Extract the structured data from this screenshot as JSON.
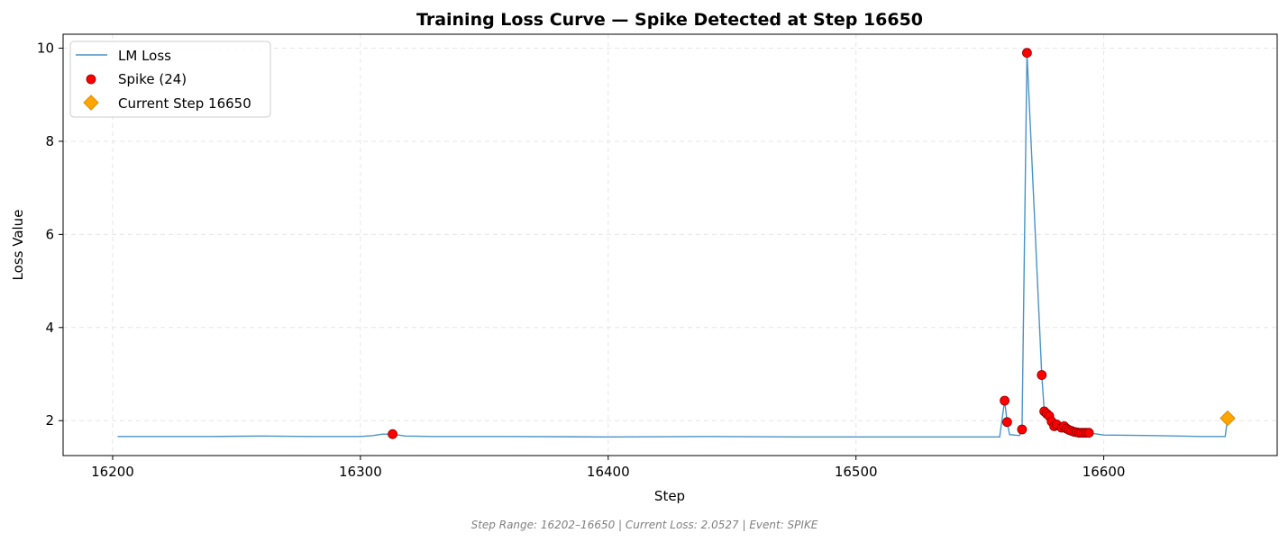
{
  "colors": {
    "line": "#4a93c6",
    "spike": "#ff0000",
    "spike_edge": "#8b0000",
    "current": "#ffa500",
    "current_edge": "#e08a00",
    "grid": "#e6e6e6"
  },
  "footer": "Step Range: 16202–16650 | Current Loss: 2.0527 | Event: SPIKE",
  "chart_data": {
    "type": "line",
    "title": "Training Loss Curve — Spike Detected at Step 16650",
    "xlabel": "Step",
    "ylabel": "Loss Value",
    "xlim": [
      16180,
      16670
    ],
    "ylim": [
      1.25,
      10.3
    ],
    "xticks": [
      16200,
      16300,
      16400,
      16500,
      16600
    ],
    "yticks": [
      2,
      4,
      6,
      8,
      10
    ],
    "grid": true,
    "legend_position": "top-left",
    "legend": [
      {
        "label": "LM Loss",
        "marker": "line"
      },
      {
        "label": "Spike (24)",
        "marker": "circle"
      },
      {
        "label": "Current Step 16650",
        "marker": "diamond"
      }
    ],
    "series": [
      {
        "name": "LM Loss",
        "kind": "line",
        "points": [
          [
            16202,
            1.66
          ],
          [
            16220,
            1.66
          ],
          [
            16240,
            1.66
          ],
          [
            16260,
            1.67
          ],
          [
            16280,
            1.66
          ],
          [
            16300,
            1.66
          ],
          [
            16305,
            1.68
          ],
          [
            16309,
            1.71
          ],
          [
            16313,
            1.71
          ],
          [
            16318,
            1.67
          ],
          [
            16330,
            1.66
          ],
          [
            16360,
            1.66
          ],
          [
            16400,
            1.65
          ],
          [
            16440,
            1.66
          ],
          [
            16480,
            1.65
          ],
          [
            16520,
            1.65
          ],
          [
            16550,
            1.65
          ],
          [
            16558,
            1.65
          ],
          [
            16560,
            2.43
          ],
          [
            16561,
            1.97
          ],
          [
            16562,
            1.7
          ],
          [
            16566,
            1.68
          ],
          [
            16567,
            1.81
          ],
          [
            16569,
            9.9
          ],
          [
            16575,
            2.98
          ],
          [
            16576,
            2.2
          ],
          [
            16577,
            2.15
          ],
          [
            16578,
            2.1
          ],
          [
            16579,
            1.98
          ],
          [
            16580,
            1.88
          ],
          [
            16581,
            1.92
          ],
          [
            16582,
            1.87
          ],
          [
            16583,
            1.85
          ],
          [
            16584,
            1.88
          ],
          [
            16585,
            1.83
          ],
          [
            16586,
            1.8
          ],
          [
            16587,
            1.78
          ],
          [
            16588,
            1.76
          ],
          [
            16589,
            1.75
          ],
          [
            16590,
            1.74
          ],
          [
            16591,
            1.74
          ],
          [
            16592,
            1.74
          ],
          [
            16593,
            1.74
          ],
          [
            16594,
            1.74
          ],
          [
            16595,
            1.73
          ],
          [
            16600,
            1.69
          ],
          [
            16620,
            1.68
          ],
          [
            16640,
            1.66
          ],
          [
            16649,
            1.66
          ],
          [
            16650,
            2.05
          ]
        ]
      },
      {
        "name": "Spike (24)",
        "kind": "scatter",
        "points": [
          [
            16313,
            1.71
          ],
          [
            16560,
            2.43
          ],
          [
            16561,
            1.97
          ],
          [
            16567,
            1.81
          ],
          [
            16569,
            9.9
          ],
          [
            16575,
            2.98
          ],
          [
            16576,
            2.2
          ],
          [
            16577,
            2.15
          ],
          [
            16578,
            2.1
          ],
          [
            16579,
            1.98
          ],
          [
            16580,
            1.88
          ],
          [
            16581,
            1.92
          ],
          [
            16583,
            1.85
          ],
          [
            16584,
            1.88
          ],
          [
            16585,
            1.83
          ],
          [
            16586,
            1.8
          ],
          [
            16587,
            1.78
          ],
          [
            16588,
            1.76
          ],
          [
            16589,
            1.75
          ],
          [
            16590,
            1.74
          ],
          [
            16591,
            1.74
          ],
          [
            16592,
            1.74
          ],
          [
            16593,
            1.74
          ],
          [
            16594,
            1.74
          ]
        ]
      },
      {
        "name": "Current Step 16650",
        "kind": "marker",
        "points": [
          [
            16650,
            2.0527
          ]
        ]
      }
    ]
  }
}
